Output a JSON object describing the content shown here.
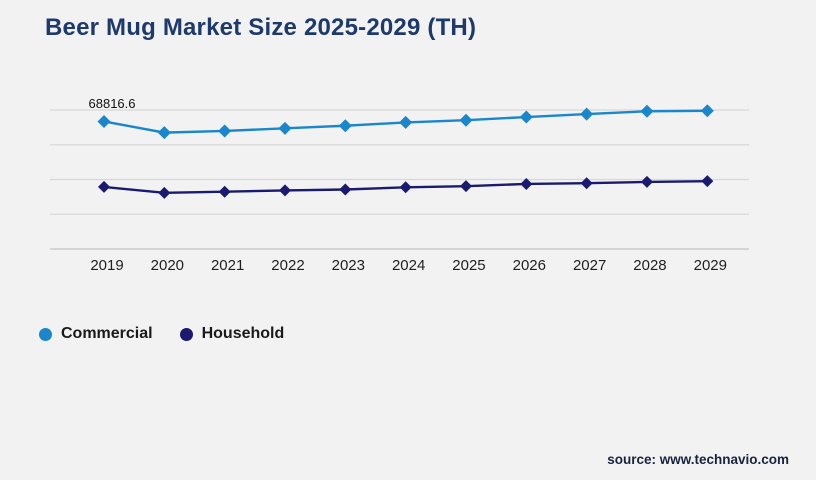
{
  "title": "Beer Mug Market Size 2025-2029 (TH)",
  "source_note": "source: www.technavio.com",
  "legend": {
    "items": [
      {
        "label": "Commercial",
        "color": "#1a86cc"
      },
      {
        "label": "Household",
        "color": "#1a1a70"
      }
    ]
  },
  "colors": {
    "background": "#f2f2f2",
    "title": "#1e3a6c",
    "commercial": "#1a86cc",
    "household": "#1a1a70",
    "gridline": "#d8d8d8",
    "axis_line": "#c4c4c4",
    "tick_label": "#1f1f1f",
    "data_label": "#111111"
  },
  "chart_data": {
    "type": "line",
    "title": "Beer Mug Market Size 2025-2029 (TH)",
    "categories": [
      "2019",
      "2020",
      "2021",
      "2022",
      "2023",
      "2024",
      "2025",
      "2026",
      "2027",
      "2028",
      "2029"
    ],
    "series": [
      {
        "name": "Commercial",
        "color": "#1a86cc",
        "marker": "diamond",
        "values": [
          68816.6,
          62800,
          63700,
          65100,
          66500,
          68300,
          69500,
          71200,
          72800,
          74300,
          74600
        ]
      },
      {
        "name": "Household",
        "color": "#1a1a70",
        "marker": "diamond",
        "values": [
          33500,
          30300,
          30900,
          31600,
          32100,
          33300,
          33900,
          35100,
          35500,
          36200,
          36600
        ]
      }
    ],
    "xlabel": "",
    "ylabel": "",
    "ylim": [
      0,
      75000
    ],
    "y_axis_labels_visible": false,
    "gridlines": "horizontal",
    "gridline_count": 5,
    "legend_position": "bottom-left",
    "annotations": [
      {
        "series": "Commercial",
        "category": "2019",
        "text": "68816.6"
      }
    ]
  }
}
